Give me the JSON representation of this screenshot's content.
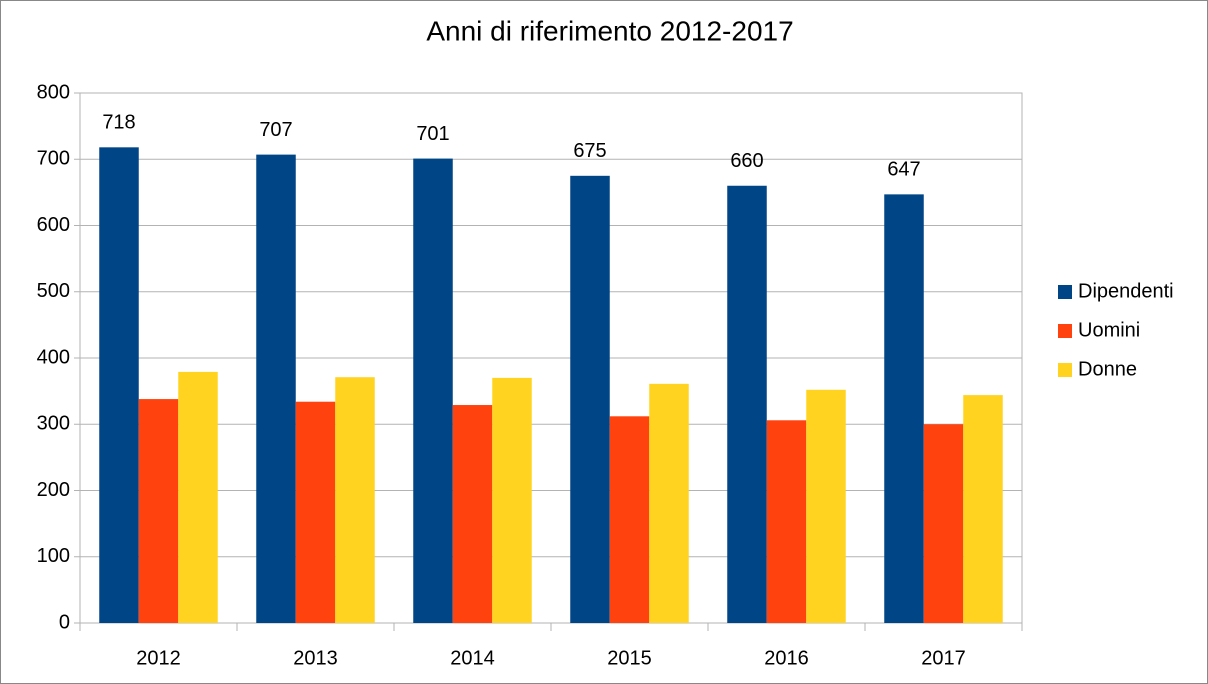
{
  "chart_data": {
    "type": "bar",
    "title": "Anni di riferimento 2012-2017",
    "categories": [
      "2012",
      "2013",
      "2014",
      "2015",
      "2016",
      "2017"
    ],
    "series": [
      {
        "name": "Dipendenti",
        "color": "#004586",
        "values": [
          718,
          707,
          701,
          675,
          660,
          647
        ],
        "data_labels": true
      },
      {
        "name": "Uomini",
        "color": "#ff420e",
        "values": [
          338,
          334,
          329,
          312,
          306,
          300
        ],
        "data_labels": false
      },
      {
        "name": "Donne",
        "color": "#ffd320",
        "values": [
          379,
          371,
          370,
          361,
          352,
          344
        ],
        "data_labels": false
      }
    ],
    "ylim": [
      0,
      800
    ],
    "yticks": [
      0,
      100,
      200,
      300,
      400,
      500,
      600,
      700,
      800
    ],
    "grid": true,
    "legend": "right"
  }
}
